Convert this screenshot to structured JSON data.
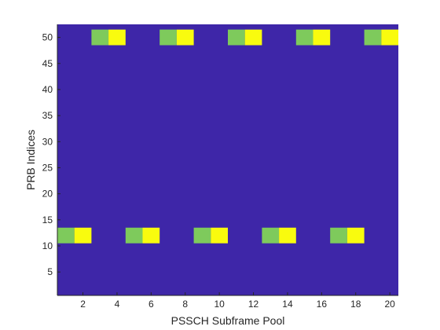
{
  "chart_data": {
    "type": "heatmap",
    "title": "",
    "xlabel": "PSSCH Subframe Pool",
    "ylabel": "PRB Indices",
    "xlim": [
      0.5,
      20.5
    ],
    "ylim": [
      0.5,
      52.5
    ],
    "xticks": [
      2,
      4,
      6,
      8,
      10,
      12,
      14,
      16,
      18,
      20
    ],
    "yticks": [
      5,
      10,
      15,
      20,
      25,
      30,
      35,
      40,
      45,
      50
    ],
    "grid": false,
    "legend": "none",
    "colors": {
      "background": "#3E26A8",
      "green": "#7ECA5C",
      "yellow": "#F9FB0E",
      "axis": "#262626"
    },
    "blocks": [
      {
        "x": 1,
        "y_range": [
          10.5,
          13.5
        ],
        "color": "green"
      },
      {
        "x": 2,
        "y_range": [
          10.5,
          13.5
        ],
        "color": "yellow"
      },
      {
        "x": 3,
        "y_range": [
          48.5,
          51.5
        ],
        "color": "green"
      },
      {
        "x": 4,
        "y_range": [
          48.5,
          51.5
        ],
        "color": "yellow"
      },
      {
        "x": 5,
        "y_range": [
          10.5,
          13.5
        ],
        "color": "green"
      },
      {
        "x": 6,
        "y_range": [
          10.5,
          13.5
        ],
        "color": "yellow"
      },
      {
        "x": 7,
        "y_range": [
          48.5,
          51.5
        ],
        "color": "green"
      },
      {
        "x": 8,
        "y_range": [
          48.5,
          51.5
        ],
        "color": "yellow"
      },
      {
        "x": 9,
        "y_range": [
          10.5,
          13.5
        ],
        "color": "green"
      },
      {
        "x": 10,
        "y_range": [
          10.5,
          13.5
        ],
        "color": "yellow"
      },
      {
        "x": 11,
        "y_range": [
          48.5,
          51.5
        ],
        "color": "green"
      },
      {
        "x": 12,
        "y_range": [
          48.5,
          51.5
        ],
        "color": "yellow"
      },
      {
        "x": 13,
        "y_range": [
          10.5,
          13.5
        ],
        "color": "green"
      },
      {
        "x": 14,
        "y_range": [
          10.5,
          13.5
        ],
        "color": "yellow"
      },
      {
        "x": 15,
        "y_range": [
          48.5,
          51.5
        ],
        "color": "green"
      },
      {
        "x": 16,
        "y_range": [
          48.5,
          51.5
        ],
        "color": "yellow"
      },
      {
        "x": 17,
        "y_range": [
          10.5,
          13.5
        ],
        "color": "green"
      },
      {
        "x": 18,
        "y_range": [
          10.5,
          13.5
        ],
        "color": "yellow"
      },
      {
        "x": 19,
        "y_range": [
          48.5,
          51.5
        ],
        "color": "green"
      },
      {
        "x": 20,
        "y_range": [
          48.5,
          51.5
        ],
        "color": "yellow"
      }
    ]
  }
}
